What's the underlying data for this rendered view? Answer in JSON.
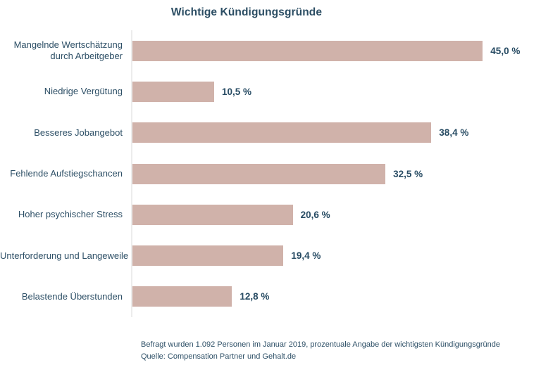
{
  "title": "Wichtige Kündigungsgründe",
  "footnote": {
    "line1": "Befragt wurden 1.092 Personen im Januar 2019, prozentuale Angabe der wichtigsten Kündigungsgründe",
    "line2": "Quelle: Compensation Partner und Gehalt.de"
  },
  "colors": {
    "bar": "#d0b2aa",
    "text": "#2d4f66",
    "title": "#2b4d63",
    "value_label": "#274b63",
    "axis_line": "#ececec",
    "background": "#ffffff"
  },
  "chart_data": {
    "type": "bar",
    "orientation": "horizontal",
    "title": "Wichtige Kündigungsgründe",
    "xlabel": "",
    "ylabel": "",
    "xlim": [
      0,
      45
    ],
    "grid": false,
    "legend": false,
    "categories": [
      "Mangelnde Wertschätzung\ndurch Arbeitgeber",
      "Niedrige Vergütung",
      "Besseres Jobangebot",
      "Fehlende Aufstiegschancen",
      "Hoher psychischer Stress",
      "Unterforderung und Langeweile",
      "Belastende Überstunden"
    ],
    "values": [
      45.0,
      10.5,
      38.4,
      32.5,
      20.6,
      19.4,
      12.8
    ],
    "value_labels": [
      "45,0 %",
      "10,5 %",
      "38,4 %",
      "32,5 %",
      "20,6 %",
      "19,4 %",
      "12,8 %"
    ],
    "annotation_line1": "Befragt wurden 1.092 Personen im Januar 2019, prozentuale Angabe der wichtigsten Kündigungsgründe",
    "annotation_line2": "Quelle: Compensation Partner und Gehalt.de"
  }
}
